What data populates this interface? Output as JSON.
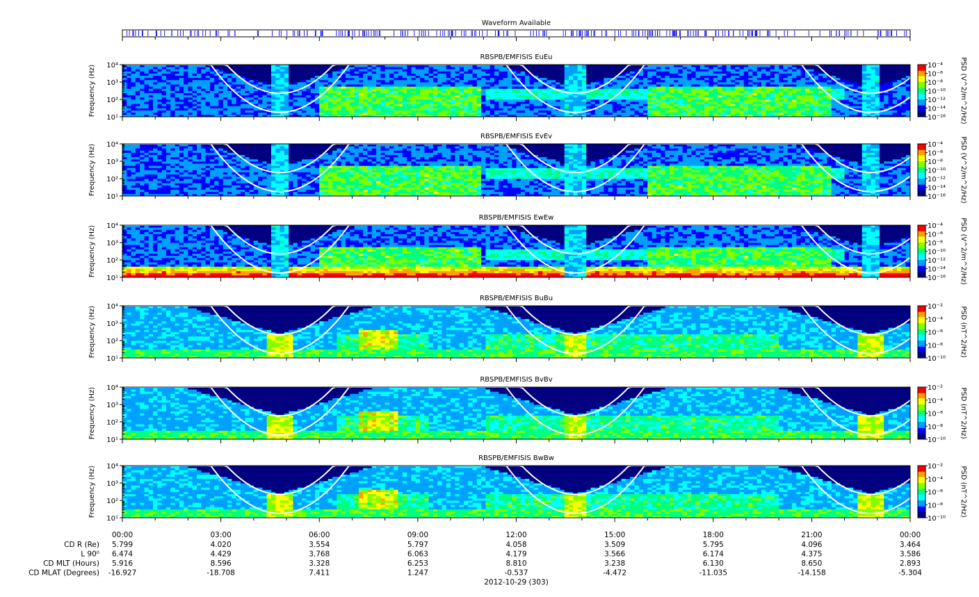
{
  "waveform": {
    "title": "Waveform Available",
    "color": "#0000ff"
  },
  "panels": [
    {
      "title": "RBSPB/EMFISIS  EuEu",
      "ylabel": "Frequency (Hz)",
      "yticks": [
        "10¹",
        "10²",
        "10³",
        "10⁴"
      ],
      "cb_label": "PSD (V^2/m^2/Hz)",
      "cb_ticks": [
        "10⁻⁴",
        "10⁻⁶",
        "10⁻⁸",
        "10⁻¹⁰",
        "10⁻¹²",
        "10⁻¹⁴",
        "10⁻¹⁶"
      ],
      "kind": "E",
      "strong": false
    },
    {
      "title": "RBSPB/EMFISIS  EvEv",
      "ylabel": "Frequency (Hz)",
      "yticks": [
        "10¹",
        "10²",
        "10³",
        "10⁴"
      ],
      "cb_label": "PSD (V^2/m^2/Hz)",
      "cb_ticks": [
        "10⁻⁴",
        "10⁻⁶",
        "10⁻⁸",
        "10⁻¹⁰",
        "10⁻¹²",
        "10⁻¹⁴",
        "10⁻¹⁶"
      ],
      "kind": "E",
      "strong": false
    },
    {
      "title": "RBSPB/EMFISIS  EwEw",
      "ylabel": "Frequency (Hz)",
      "yticks": [
        "10¹",
        "10²",
        "10³",
        "10⁴"
      ],
      "cb_label": "PSD (V^2/m^2/Hz)",
      "cb_ticks": [
        "10⁻⁴",
        "10⁻⁶",
        "10⁻⁸",
        "10⁻¹⁰",
        "10⁻¹²",
        "10⁻¹⁴",
        "10⁻¹⁶"
      ],
      "kind": "E",
      "strong": true
    },
    {
      "title": "RBSPB/EMFISIS  BuBu",
      "ylabel": "Frequency (Hz)",
      "yticks": [
        "10¹",
        "10²",
        "10³",
        "10⁴"
      ],
      "cb_label": "PSD (nT^2/Hz)",
      "cb_ticks": [
        "10⁻²",
        "10⁻⁴",
        "10⁻⁶",
        "10⁻⁸",
        "10⁻¹⁰"
      ],
      "kind": "B",
      "strong": false
    },
    {
      "title": "RBSPB/EMFISIS  BvBv",
      "ylabel": "Frequency (Hz)",
      "yticks": [
        "10¹",
        "10²",
        "10³",
        "10⁴"
      ],
      "cb_label": "PSD (nT^2/Hz)",
      "cb_ticks": [
        "10⁻²",
        "10⁻⁴",
        "10⁻⁶",
        "10⁻⁸",
        "10⁻¹⁰"
      ],
      "kind": "B",
      "strong": false
    },
    {
      "title": "RBSPB/EMFISIS  BwBw",
      "ylabel": "Frequency (Hz)",
      "yticks": [
        "10¹",
        "10²",
        "10³",
        "10⁴"
      ],
      "cb_label": "PSD (nT^2/Hz)",
      "cb_ticks": [
        "10⁻²",
        "10⁻⁴",
        "10⁻⁶",
        "10⁻⁸",
        "10⁻¹⁰"
      ],
      "kind": "B",
      "strong": false
    }
  ],
  "time_axis": {
    "ticks": [
      "00:00",
      "03:00",
      "06:00",
      "09:00",
      "12:00",
      "15:00",
      "18:00",
      "21:00",
      "00:00"
    ],
    "rows": [
      {
        "label": "CD R (Re)",
        "values": [
          "5.799",
          "4.020",
          "3.554",
          "5.797",
          "4.058",
          "3.509",
          "5.795",
          "4.096",
          "3.464"
        ]
      },
      {
        "label": "L 90⁰",
        "values": [
          "6.474",
          "4.429",
          "3.768",
          "6.063",
          "4.179",
          "3.566",
          "6.174",
          "4.375",
          "3.586"
        ]
      },
      {
        "label": "CD MLT (Hours)",
        "values": [
          "5.916",
          "8.596",
          "3.328",
          "6.253",
          "8.810",
          "3.238",
          "6.130",
          "8.650",
          "2.893"
        ]
      },
      {
        "label": "CD MLAT (Degrees)",
        "values": [
          "-16.927",
          "-18.708",
          "7.411",
          "1.247",
          "-0.537",
          "-4.472",
          "-11.035",
          "-14.158",
          "-5.304"
        ]
      }
    ],
    "date": "2012-10-29 (303)"
  },
  "chart_data": {
    "type": "heatmap",
    "x_range_hours": [
      0,
      24
    ],
    "x_ticks": [
      "00:00",
      "03:00",
      "06:00",
      "09:00",
      "12:00",
      "15:00",
      "18:00",
      "21:00",
      "00:00"
    ],
    "y_scale": "log",
    "y_range_hz": [
      10,
      10000
    ],
    "perigee_hours": [
      4.8,
      13.8,
      22.8
    ],
    "e_range_log10": [
      -16,
      -4
    ],
    "b_range_log10": [
      -10,
      -2
    ],
    "colormap": [
      "#000080",
      "#0000ff",
      "#00a0ff",
      "#00ffff",
      "#00ff80",
      "#80ff00",
      "#ffff00",
      "#ffa000",
      "#ff0000"
    ]
  }
}
